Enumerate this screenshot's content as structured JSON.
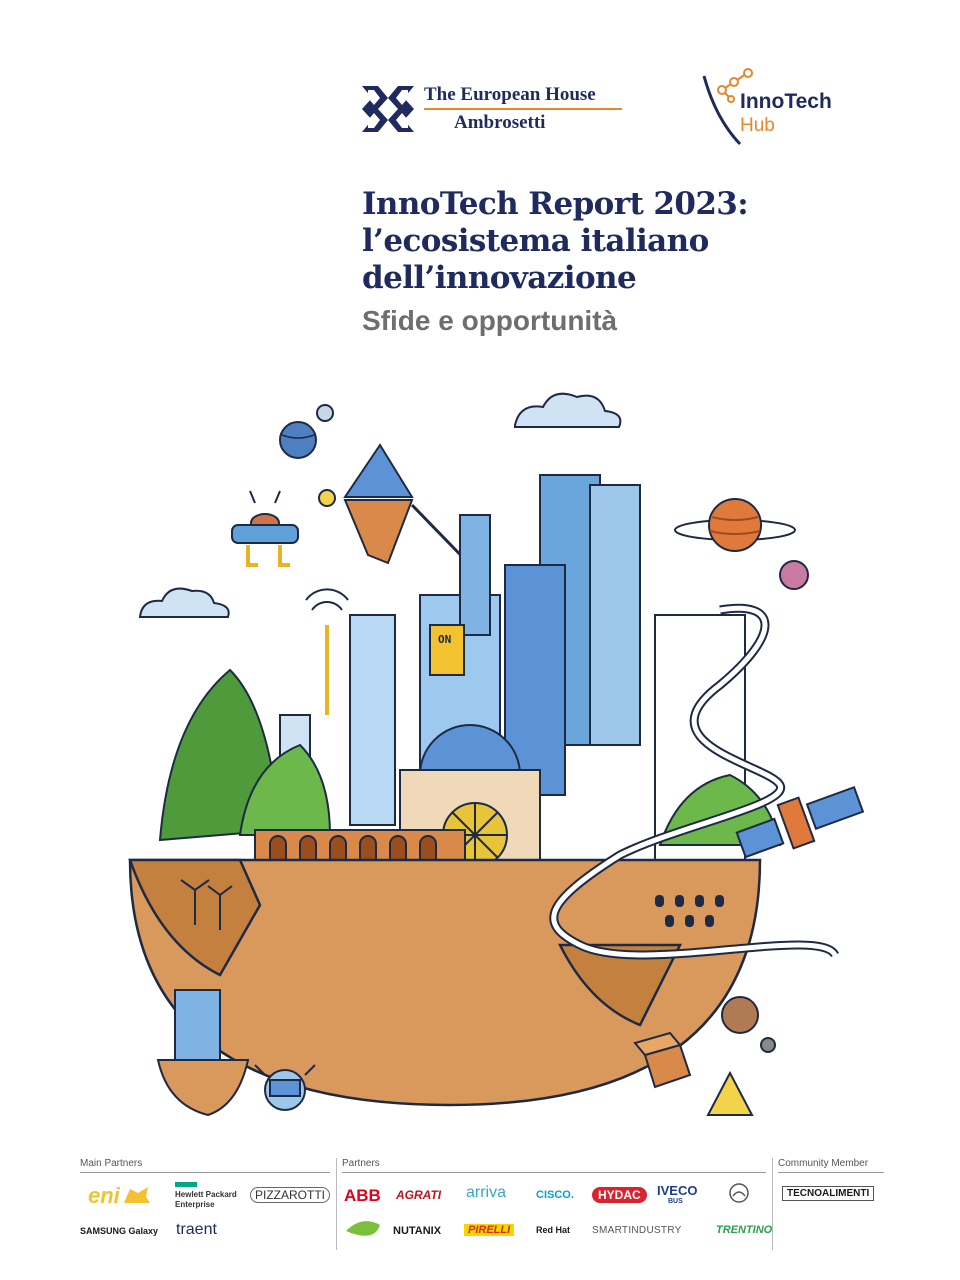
{
  "header": {
    "teh_logo": {
      "line1": "The European House",
      "line2": "Ambrosetti"
    },
    "innotech_logo": {
      "line1": "InnoTech",
      "line2": "Hub"
    }
  },
  "title": {
    "lines": [
      "InnoTech Report 2023:",
      "l’ecosistema italiano",
      "dell’innovazione"
    ],
    "subtitle": "Sfide e opportunità"
  },
  "illustration": {
    "sign_text": "ON"
  },
  "partners": {
    "main_label": "Main Partners",
    "partners_label": "Partners",
    "community_label": "Community Member",
    "main": [
      "eni",
      "Hewlett Packard",
      "Enterprise",
      "PIZZAROTTI",
      "SAMSUNG Galaxy",
      "traent"
    ],
    "partners": [
      "ABB",
      "AGRATI",
      "arriva",
      "CISCO.",
      "HYDAC",
      "IVECO",
      "BUS",
      "NUTANIX",
      "PIRELLI",
      "Red Hat",
      "SMARTINDUSTRY",
      "TRENTINO"
    ],
    "community": [
      "TECNOALIMENTI"
    ]
  },
  "colors": {
    "navy": "#1f2a5e",
    "orange": "#e8862a",
    "grey": "#6e6e6e"
  }
}
